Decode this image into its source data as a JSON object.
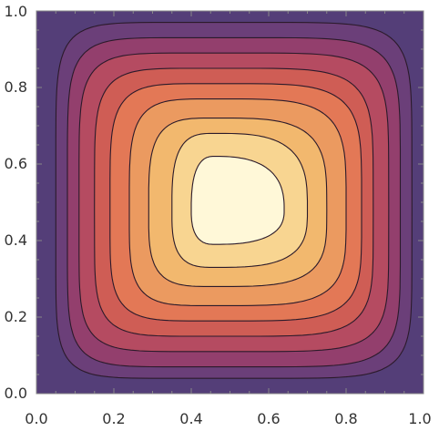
{
  "chart_data": {
    "type": "contour",
    "title": "",
    "xlabel": "",
    "ylabel": "",
    "xlim": [
      0.0,
      1.0
    ],
    "ylim": [
      0.0,
      1.0
    ],
    "x_ticks": [
      "0.0",
      "0.2",
      "0.4",
      "0.6",
      "0.8",
      "1.0"
    ],
    "y_ticks": [
      "0.0",
      "0.2",
      "0.4",
      "0.6",
      "0.8",
      "1.0"
    ],
    "grid": false,
    "legend": "none",
    "peak": {
      "x": 0.46,
      "y": 0.48
    },
    "contour_levels": [
      {
        "bottom": 0.04,
        "top": 0.97,
        "left": 0.05,
        "right": 0.97,
        "fill": "#6b3f79"
      },
      {
        "bottom": 0.07,
        "top": 0.93,
        "left": 0.08,
        "right": 0.94,
        "fill": "#933f6d"
      },
      {
        "bottom": 0.11,
        "top": 0.89,
        "left": 0.11,
        "right": 0.91,
        "fill": "#b54b61"
      },
      {
        "bottom": 0.15,
        "top": 0.85,
        "left": 0.15,
        "right": 0.87,
        "fill": "#cf5d55"
      },
      {
        "bottom": 0.19,
        "top": 0.81,
        "left": 0.19,
        "right": 0.84,
        "fill": "#e37856"
      },
      {
        "bottom": 0.23,
        "top": 0.77,
        "left": 0.24,
        "right": 0.8,
        "fill": "#eb9a60"
      },
      {
        "bottom": 0.28,
        "top": 0.72,
        "left": 0.29,
        "right": 0.75,
        "fill": "#f2b86e"
      },
      {
        "bottom": 0.33,
        "top": 0.68,
        "left": 0.35,
        "right": 0.7,
        "fill": "#f8d591"
      },
      {
        "bottom": 0.39,
        "top": 0.62,
        "left": 0.4,
        "right": 0.64,
        "fill": "#fff8d8"
      }
    ],
    "colors": {
      "background_fill": "#543e78",
      "contour_line": "#2b1a2a",
      "frame": "#888888",
      "tick_label": "#333333"
    }
  }
}
